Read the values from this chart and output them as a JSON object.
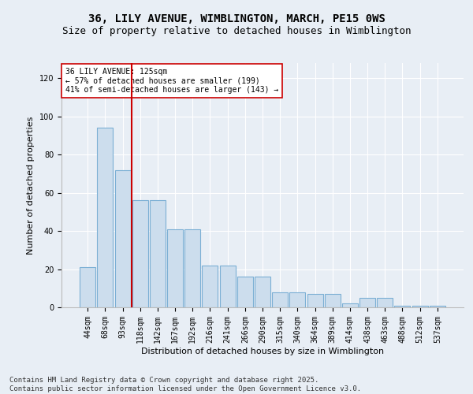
{
  "title_line1": "36, LILY AVENUE, WIMBLINGTON, MARCH, PE15 0WS",
  "title_line2": "Size of property relative to detached houses in Wimblington",
  "xlabel": "Distribution of detached houses by size in Wimblington",
  "ylabel": "Number of detached properties",
  "categories": [
    "44sqm",
    "68sqm",
    "93sqm",
    "118sqm",
    "142sqm",
    "167sqm",
    "192sqm",
    "216sqm",
    "241sqm",
    "266sqm",
    "290sqm",
    "315sqm",
    "340sqm",
    "364sqm",
    "389sqm",
    "414sqm",
    "438sqm",
    "463sqm",
    "488sqm",
    "512sqm",
    "537sqm"
  ],
  "values": [
    21,
    94,
    72,
    56,
    56,
    41,
    41,
    22,
    22,
    16,
    16,
    8,
    8,
    7,
    7,
    2,
    5,
    5,
    1,
    1,
    1
  ],
  "bar_color": "#ccdded",
  "bar_edge_color": "#7bafd4",
  "vline_x": 2.5,
  "vline_color": "#cc0000",
  "annotation_text": "36 LILY AVENUE: 125sqm\n← 57% of detached houses are smaller (199)\n41% of semi-detached houses are larger (143) →",
  "annotation_box_color": "#ffffff",
  "annotation_box_edge": "#cc0000",
  "ylim": [
    0,
    128
  ],
  "yticks": [
    0,
    20,
    40,
    60,
    80,
    100,
    120
  ],
  "background_color": "#e8eef5",
  "footer_text": "Contains HM Land Registry data © Crown copyright and database right 2025.\nContains public sector information licensed under the Open Government Licence v3.0.",
  "title_fontsize": 10,
  "subtitle_fontsize": 9,
  "xlabel_fontsize": 8,
  "ylabel_fontsize": 8,
  "tick_fontsize": 7,
  "footer_fontsize": 6.5,
  "annot_fontsize": 7
}
